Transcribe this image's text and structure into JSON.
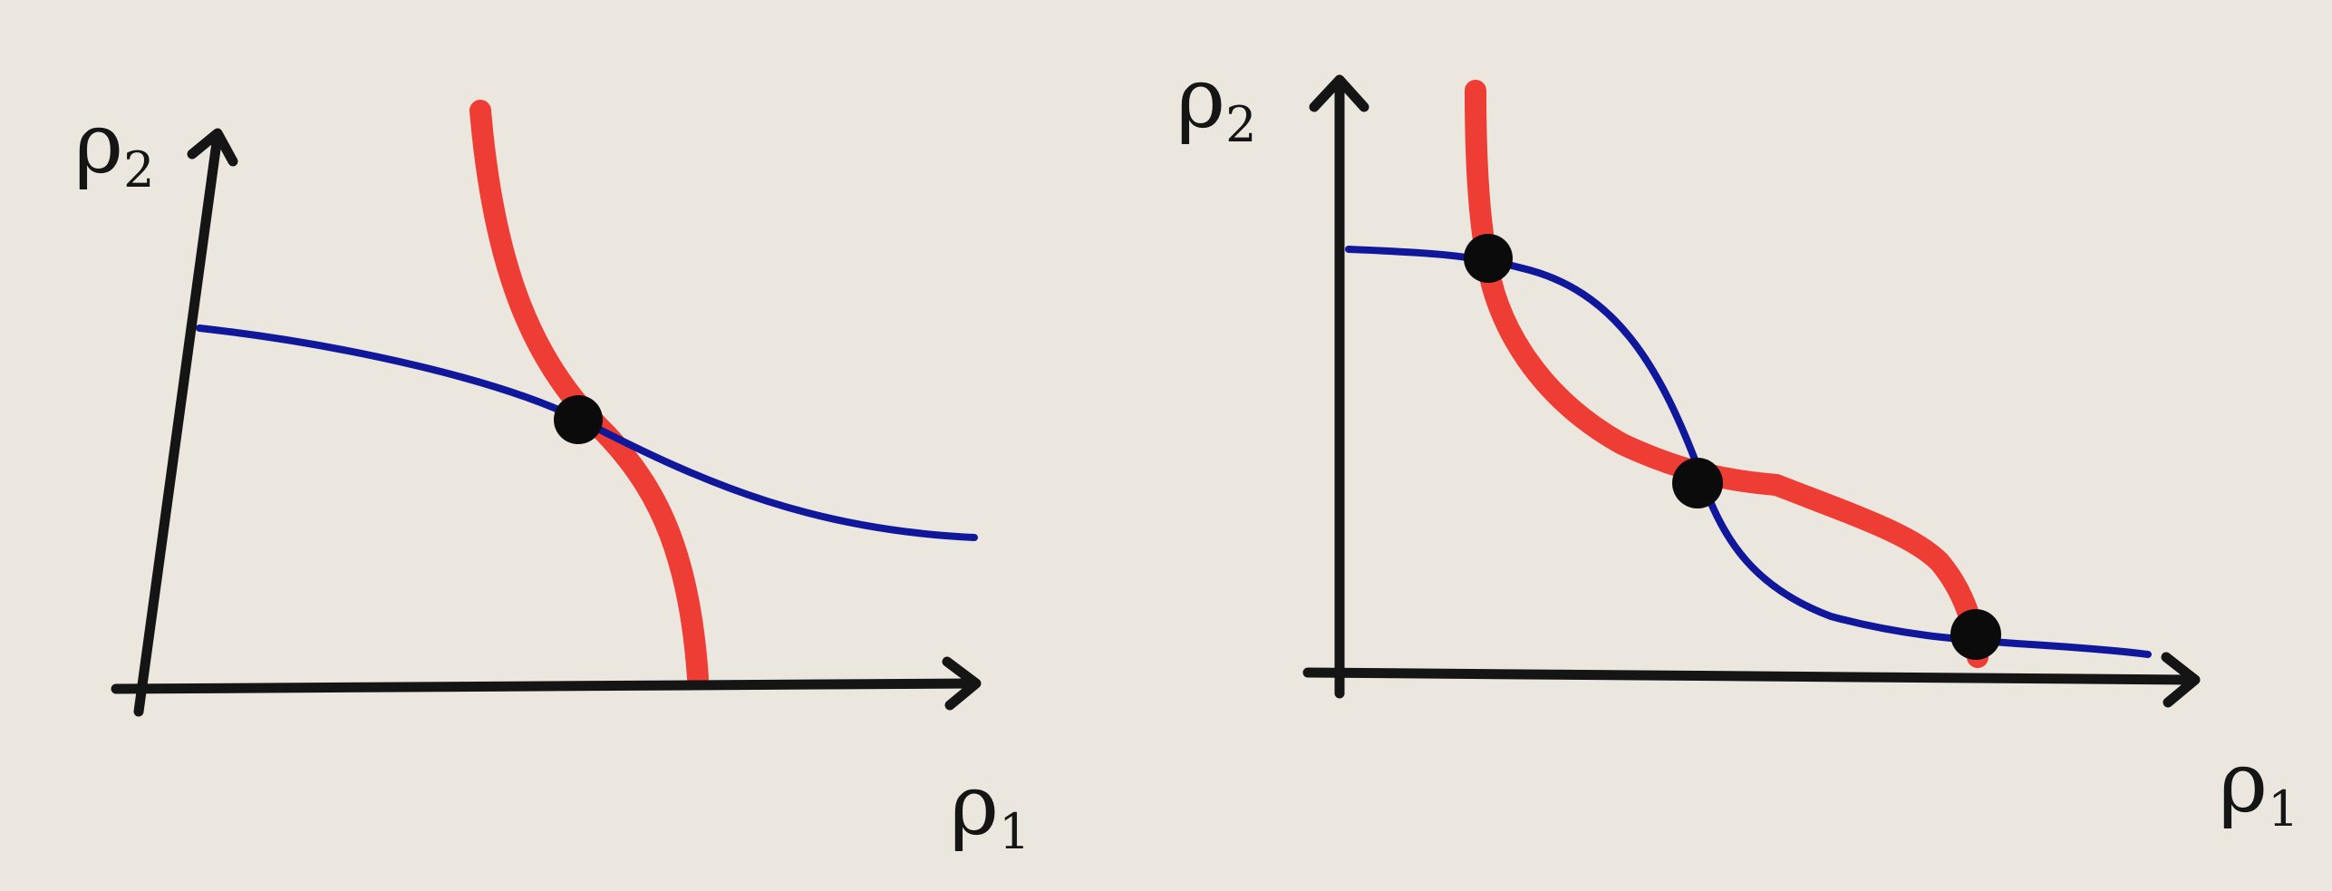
{
  "diagram": {
    "panels": [
      {
        "id": "left",
        "y_axis_label": {
          "base": "ρ",
          "sub": "2"
        },
        "x_axis_label": {
          "base": "ρ",
          "sub": "1"
        },
        "intersection_count": 1
      },
      {
        "id": "right",
        "y_axis_label": {
          "base": "ρ",
          "sub": "2"
        },
        "x_axis_label": {
          "base": "ρ",
          "sub": "1"
        },
        "intersection_count": 3
      }
    ],
    "colors": {
      "background": "#ebe7de",
      "axis": "#151515",
      "red_curve": "#ee3d34",
      "blue_curve": "#10179a",
      "point": "#0b0b0b"
    }
  }
}
